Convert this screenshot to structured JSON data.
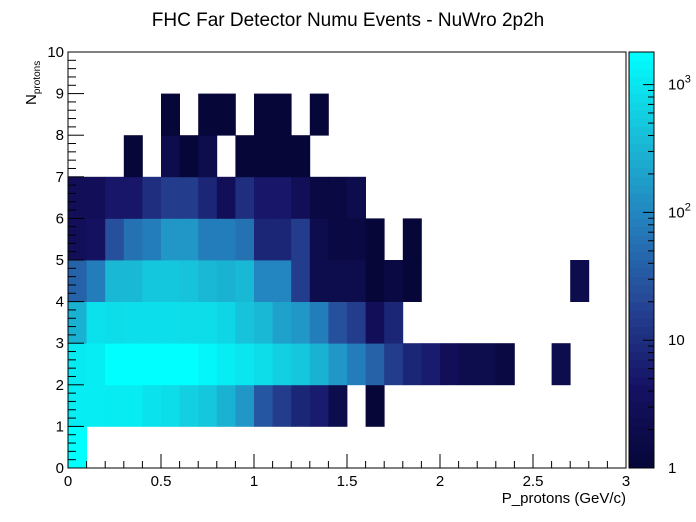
{
  "chart_data": {
    "type": "heatmap",
    "title": "FHC Far Detector Numu Events - NuWro 2p2h",
    "xlabel": "P_protons (GeV/c)",
    "ylabel": {
      "main": "N",
      "sub": "protons"
    },
    "xlim": [
      0,
      3
    ],
    "ylim": [
      0,
      10
    ],
    "x_bin_width": 0.1,
    "y_bin_width": 1,
    "x_ticks": [
      "0",
      "0.5",
      "1",
      "1.5",
      "2",
      "2.5",
      "3"
    ],
    "y_ticks": [
      "0",
      "1",
      "2",
      "3",
      "4",
      "5",
      "6",
      "7",
      "8",
      "9",
      "10"
    ],
    "colorbar": {
      "scale": "log",
      "range": [
        1,
        1800
      ],
      "tick_labels": [
        {
          "value": 1,
          "base": "1",
          "exp": ""
        },
        {
          "value": 10,
          "base": "10",
          "exp": ""
        },
        {
          "value": 100,
          "base": "10",
          "exp": "2"
        },
        {
          "value": 1000,
          "base": "10",
          "exp": "3"
        }
      ]
    },
    "cells": [
      [
        0,
        0,
        1800
      ],
      [
        0,
        1,
        1200
      ],
      [
        1,
        1,
        1200
      ],
      [
        2,
        1,
        1150
      ],
      [
        3,
        1,
        1150
      ],
      [
        4,
        1,
        950
      ],
      [
        5,
        1,
        800
      ],
      [
        6,
        1,
        600
      ],
      [
        7,
        1,
        500
      ],
      [
        8,
        1,
        300
      ],
      [
        9,
        1,
        150
      ],
      [
        10,
        1,
        30
      ],
      [
        11,
        1,
        15
      ],
      [
        12,
        1,
        8
      ],
      [
        13,
        1,
        6
      ],
      [
        14,
        1,
        2
      ],
      [
        16,
        1,
        1
      ],
      [
        0,
        2,
        1100
      ],
      [
        1,
        2,
        1200
      ],
      [
        2,
        2,
        1800
      ],
      [
        3,
        2,
        1800
      ],
      [
        4,
        2,
        1800
      ],
      [
        5,
        2,
        1800
      ],
      [
        6,
        2,
        1800
      ],
      [
        7,
        2,
        1500
      ],
      [
        8,
        2,
        1200
      ],
      [
        9,
        2,
        1000
      ],
      [
        10,
        2,
        800
      ],
      [
        11,
        2,
        600
      ],
      [
        12,
        2,
        500
      ],
      [
        13,
        2,
        300
      ],
      [
        14,
        2,
        150
      ],
      [
        15,
        2,
        80
      ],
      [
        16,
        2,
        40
      ],
      [
        17,
        2,
        15
      ],
      [
        18,
        2,
        8
      ],
      [
        19,
        2,
        6
      ],
      [
        20,
        2,
        3
      ],
      [
        21,
        2,
        2
      ],
      [
        22,
        2,
        2
      ],
      [
        23,
        2,
        1.5
      ],
      [
        26,
        2,
        2
      ],
      [
        0,
        3,
        300
      ],
      [
        1,
        3,
        900
      ],
      [
        2,
        3,
        800
      ],
      [
        3,
        3,
        850
      ],
      [
        4,
        3,
        850
      ],
      [
        5,
        3,
        850
      ],
      [
        6,
        3,
        800
      ],
      [
        7,
        3,
        800
      ],
      [
        8,
        3,
        700
      ],
      [
        9,
        3,
        450
      ],
      [
        10,
        3,
        350
      ],
      [
        11,
        3,
        200
      ],
      [
        12,
        3,
        150
      ],
      [
        13,
        3,
        80
      ],
      [
        14,
        3,
        25
      ],
      [
        15,
        3,
        15
      ],
      [
        16,
        3,
        3
      ],
      [
        17,
        3,
        8
      ],
      [
        0,
        4,
        40
      ],
      [
        1,
        4,
        80
      ],
      [
        2,
        4,
        350
      ],
      [
        3,
        4,
        350
      ],
      [
        4,
        4,
        500
      ],
      [
        5,
        4,
        500
      ],
      [
        6,
        4,
        450
      ],
      [
        7,
        4,
        350
      ],
      [
        8,
        4,
        300
      ],
      [
        9,
        4,
        350
      ],
      [
        10,
        4,
        100
      ],
      [
        11,
        4,
        100
      ],
      [
        12,
        4,
        15
      ],
      [
        13,
        4,
        2
      ],
      [
        14,
        4,
        2
      ],
      [
        15,
        4,
        2
      ],
      [
        16,
        4,
        1
      ],
      [
        17,
        4,
        1.5
      ],
      [
        18,
        4,
        1
      ],
      [
        27,
        4,
        2
      ],
      [
        0,
        5,
        3
      ],
      [
        1,
        5,
        4
      ],
      [
        2,
        5,
        25
      ],
      [
        3,
        5,
        60
      ],
      [
        4,
        5,
        80
      ],
      [
        5,
        5,
        150
      ],
      [
        6,
        5,
        150
      ],
      [
        7,
        5,
        80
      ],
      [
        8,
        5,
        80
      ],
      [
        9,
        5,
        60
      ],
      [
        10,
        5,
        8
      ],
      [
        11,
        5,
        8
      ],
      [
        12,
        5,
        15
      ],
      [
        13,
        5,
        2
      ],
      [
        14,
        5,
        1.5
      ],
      [
        15,
        5,
        1.5
      ],
      [
        16,
        5,
        1
      ],
      [
        18,
        5,
        1
      ],
      [
        0,
        6,
        3
      ],
      [
        1,
        6,
        3
      ],
      [
        2,
        6,
        5
      ],
      [
        3,
        6,
        5
      ],
      [
        4,
        6,
        10
      ],
      [
        5,
        6,
        15
      ],
      [
        6,
        6,
        15
      ],
      [
        7,
        6,
        8
      ],
      [
        8,
        6,
        3
      ],
      [
        9,
        6,
        10
      ],
      [
        10,
        6,
        5
      ],
      [
        11,
        6,
        5
      ],
      [
        12,
        6,
        3
      ],
      [
        13,
        6,
        1.5
      ],
      [
        14,
        6,
        1.5
      ],
      [
        15,
        6,
        2
      ],
      [
        3,
        7,
        1
      ],
      [
        5,
        7,
        2
      ],
      [
        6,
        7,
        1
      ],
      [
        7,
        7,
        2
      ],
      [
        9,
        7,
        1
      ],
      [
        10,
        7,
        1
      ],
      [
        11,
        7,
        1
      ],
      [
        12,
        7,
        1
      ],
      [
        5,
        8,
        1
      ],
      [
        7,
        8,
        1
      ],
      [
        8,
        8,
        1
      ],
      [
        10,
        8,
        1
      ],
      [
        11,
        8,
        1
      ],
      [
        13,
        8,
        1
      ]
    ]
  }
}
